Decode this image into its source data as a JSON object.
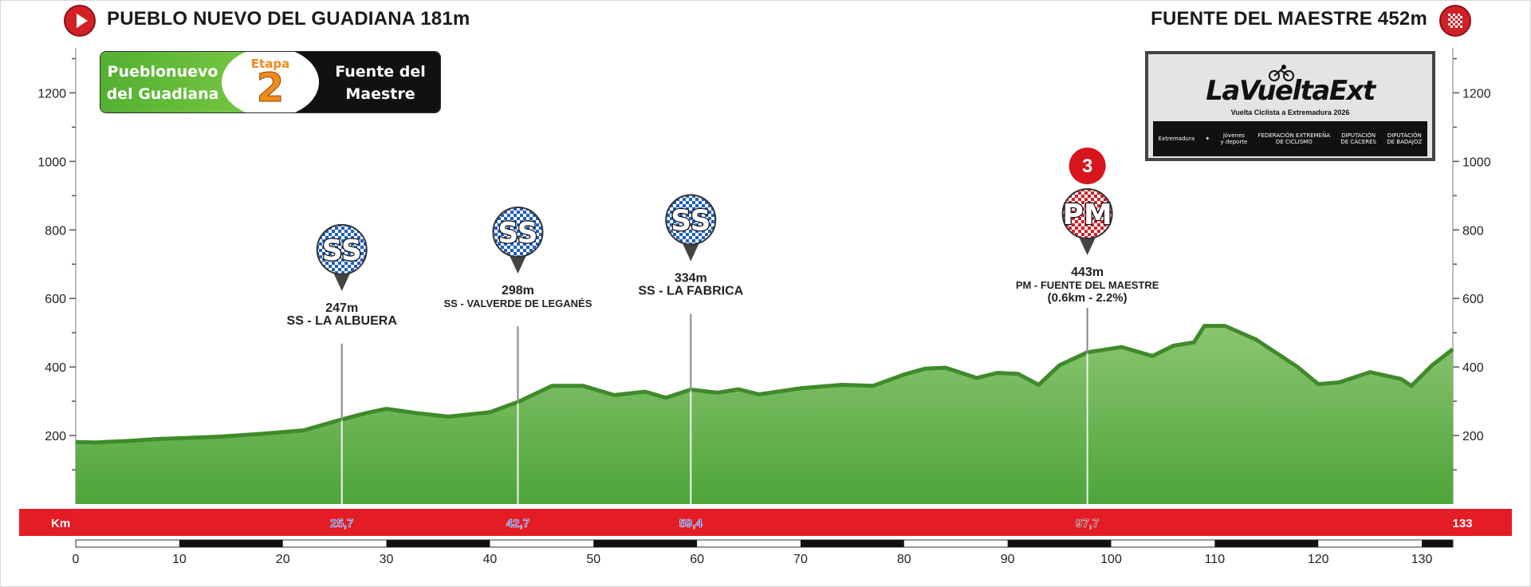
{
  "header": {
    "start_title": "PUEBLO NUEVO DEL GUADIANA 181m",
    "finish_title": "FUENTE DEL MAESTRE 452m",
    "start_icon": "play-icon",
    "finish_icon": "checkered-flag-icon"
  },
  "stage_badge": {
    "start": "Pueblonuevo\ndel Guadiana",
    "label": "Etapa",
    "number": "2",
    "end": "Fuente del\nMaestre"
  },
  "logo": {
    "name": "LaVueltaExt",
    "subtitle": "Vuelta Ciclista a Extremadura 2026",
    "sponsors": [
      "Extremadura",
      "",
      "jóvenes\ny deporte",
      "FEDERACIÓN EXTREMEÑA\nDE CICLISMO",
      "DIPUTACIÓN\nDE CÁCERES",
      "DIPUTACIÓN\nDE BADAJOZ"
    ]
  },
  "colors": {
    "profile_fill_top": "#8cc571",
    "profile_fill_bottom": "#4ea53a",
    "profile_edge": "#3f8a2a",
    "km_band": "#e31c25",
    "ss_blue": "#1f5fbf",
    "pm_red": "#d32027"
  },
  "chart_data": {
    "type": "area",
    "title": "",
    "xlabel": "",
    "ylabel": "",
    "xlim": [
      0,
      133
    ],
    "ylim": [
      0,
      1350
    ],
    "xticks": [
      0,
      10,
      20,
      30,
      40,
      50,
      60,
      70,
      80,
      90,
      100,
      110,
      120,
      130
    ],
    "yticks": [
      200,
      400,
      600,
      800,
      1000,
      1200
    ],
    "band_label": "Km",
    "total_km": "133",
    "profile": [
      [
        0,
        181
      ],
      [
        2,
        180
      ],
      [
        5,
        184
      ],
      [
        8,
        190
      ],
      [
        10,
        192
      ],
      [
        14,
        197
      ],
      [
        18,
        205
      ],
      [
        22,
        215
      ],
      [
        25.7,
        247
      ],
      [
        28,
        265
      ],
      [
        30,
        278
      ],
      [
        33,
        265
      ],
      [
        36,
        255
      ],
      [
        40,
        268
      ],
      [
        42.7,
        298
      ],
      [
        46,
        345
      ],
      [
        49,
        345
      ],
      [
        52,
        318
      ],
      [
        55,
        328
      ],
      [
        57,
        310
      ],
      [
        59.4,
        334
      ],
      [
        62,
        325
      ],
      [
        64,
        335
      ],
      [
        66,
        320
      ],
      [
        70,
        338
      ],
      [
        74,
        348
      ],
      [
        77,
        345
      ],
      [
        80,
        378
      ],
      [
        82,
        395
      ],
      [
        84,
        398
      ],
      [
        87,
        368
      ],
      [
        89,
        383
      ],
      [
        91,
        380
      ],
      [
        93,
        348
      ],
      [
        95,
        405
      ],
      [
        97.7,
        443
      ],
      [
        101,
        458
      ],
      [
        104,
        432
      ],
      [
        106,
        462
      ],
      [
        108,
        472
      ],
      [
        109,
        520
      ],
      [
        111,
        520
      ],
      [
        114,
        480
      ],
      [
        118,
        400
      ],
      [
        120,
        350
      ],
      [
        122,
        355
      ],
      [
        125,
        385
      ],
      [
        128,
        365
      ],
      [
        129,
        345
      ],
      [
        131,
        405
      ],
      [
        133,
        452
      ]
    ],
    "points": [
      {
        "type": "SS",
        "km": 25.7,
        "km_label": "25,7",
        "alt": 247,
        "alt_label": "247m",
        "name": "SS - LA ALBUERA"
      },
      {
        "type": "SS",
        "km": 42.7,
        "km_label": "42,7",
        "alt": 298,
        "alt_label": "298m",
        "name": "SS - VALVERDE DE LEGANÉS"
      },
      {
        "type": "SS",
        "km": 59.4,
        "km_label": "59,4",
        "alt": 334,
        "alt_label": "334m",
        "name": "SS - LA FABRICA"
      },
      {
        "type": "PM",
        "category": "3",
        "km": 97.7,
        "km_label": "97,7",
        "alt": 443,
        "alt_label": "443m",
        "name": "PM - FUENTE DEL MAESTRE",
        "detail": "(0.6km - 2.2%)"
      }
    ]
  }
}
